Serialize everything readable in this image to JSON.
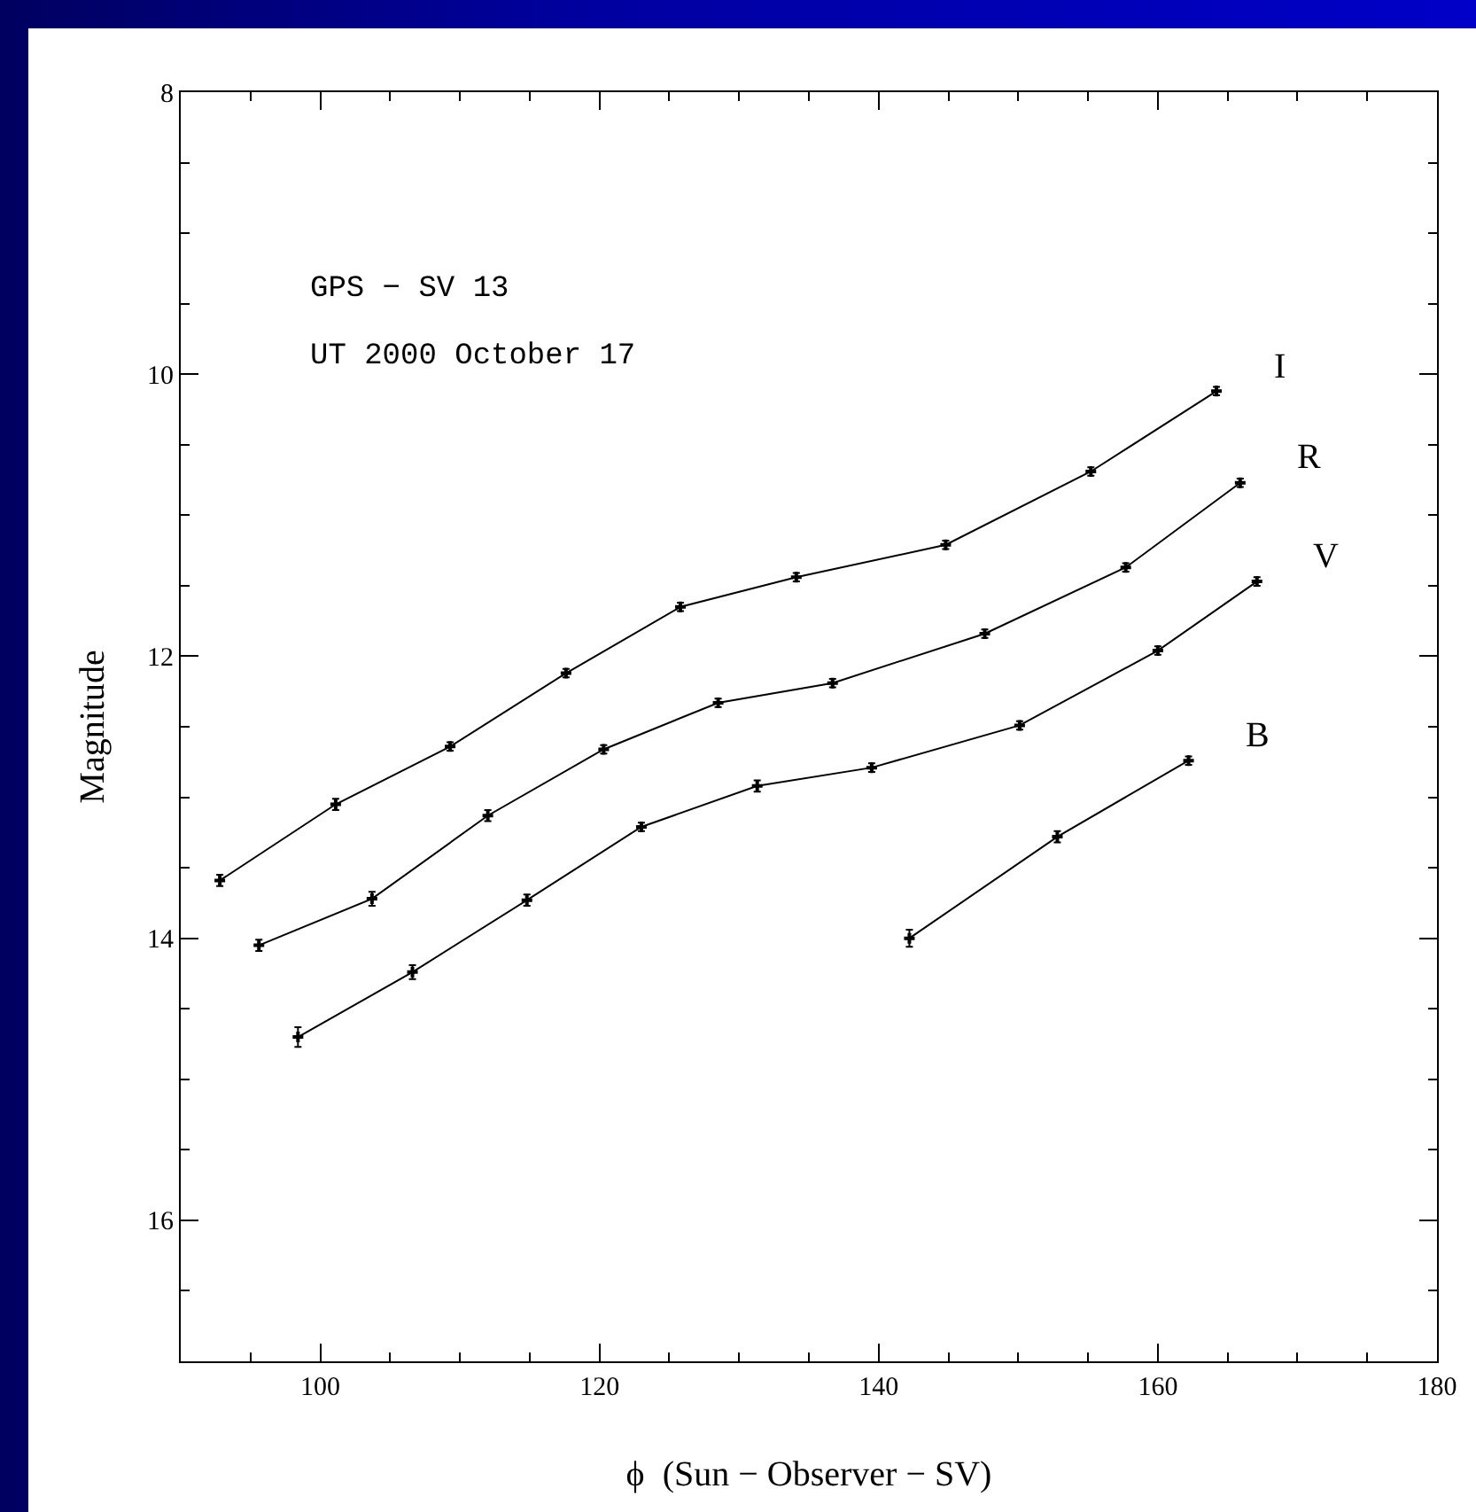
{
  "chart_data": {
    "type": "line",
    "xlabel": "ϕ  (Sun − Observer − SV)",
    "ylabel": "Magnitude",
    "xlim": [
      90,
      180
    ],
    "xticks": [
      100,
      120,
      140,
      160,
      180
    ],
    "ylim": [
      17,
      8
    ],
    "yticks": [
      8,
      10,
      12,
      14,
      16
    ],
    "grid": false,
    "legend": false,
    "marker": "cross",
    "line_style": "solid",
    "annotations": [
      "GPS − SV 13",
      "UT 2000 October 17"
    ],
    "series": [
      {
        "name": "I",
        "color": "#000000",
        "x": [
          92.8,
          101.1,
          109.3,
          117.6,
          125.8,
          134.1,
          144.8,
          155.2,
          164.2
        ],
        "values": [
          13.59,
          13.05,
          12.64,
          12.12,
          11.65,
          11.44,
          11.21,
          10.69,
          10.12
        ],
        "errors": [
          0.04,
          0.04,
          0.03,
          0.03,
          0.03,
          0.03,
          0.03,
          0.03,
          0.03
        ]
      },
      {
        "name": "R",
        "color": "#000000",
        "x": [
          95.6,
          103.7,
          112.0,
          120.3,
          128.5,
          136.7,
          147.6,
          157.7,
          165.9
        ],
        "values": [
          14.05,
          13.72,
          13.13,
          12.66,
          12.33,
          12.19,
          11.84,
          11.37,
          10.77
        ],
        "errors": [
          0.04,
          0.05,
          0.04,
          0.03,
          0.03,
          0.03,
          0.03,
          0.03,
          0.03
        ]
      },
      {
        "name": "V",
        "color": "#000000",
        "x": [
          98.4,
          106.6,
          114.8,
          123.0,
          131.3,
          139.5,
          150.1,
          160.0,
          167.1
        ],
        "values": [
          14.7,
          14.24,
          13.73,
          13.21,
          12.92,
          12.79,
          12.49,
          11.96,
          11.47
        ],
        "errors": [
          0.07,
          0.05,
          0.04,
          0.03,
          0.04,
          0.03,
          0.03,
          0.03,
          0.03
        ]
      },
      {
        "name": "B",
        "color": "#000000",
        "x": [
          142.2,
          152.8,
          162.2
        ],
        "values": [
          14.0,
          13.28,
          12.74
        ],
        "errors": [
          0.06,
          0.04,
          0.03
        ]
      }
    ]
  }
}
